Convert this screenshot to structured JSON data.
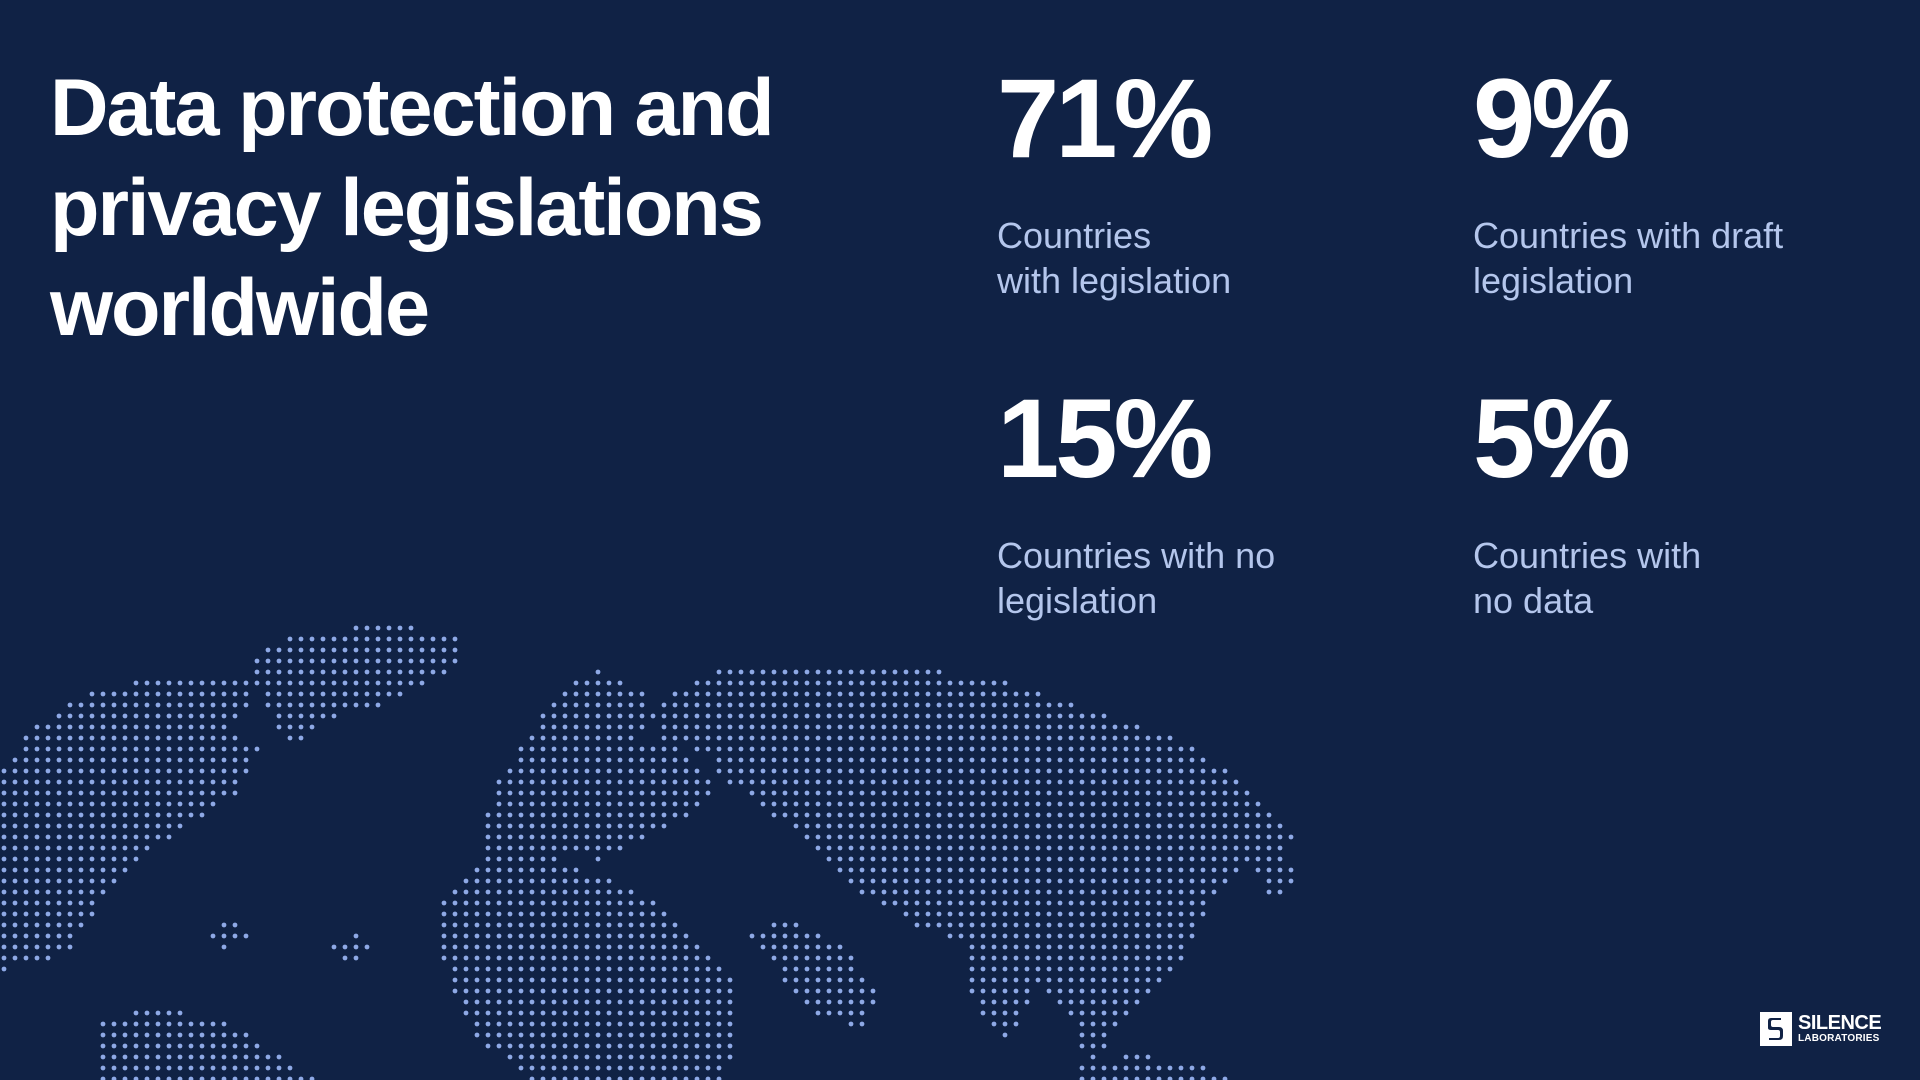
{
  "title": "Data protection and privacy legislations worldwide",
  "stats": [
    {
      "value": "71%",
      "label": "Countries\nwith legislation"
    },
    {
      "value": "9%",
      "label": "Countries with draft\nlegislation"
    },
    {
      "value": "15%",
      "label": "Countries with no\nlegislation"
    },
    {
      "value": "5%",
      "label": "Countries with\nno data"
    }
  ],
  "logo": {
    "name": "SILENCE",
    "sub": "LABORATORIES"
  },
  "colors": {
    "background": "#102245",
    "accent": "#b4c6ec",
    "map_dots": "#8ea9e6"
  }
}
